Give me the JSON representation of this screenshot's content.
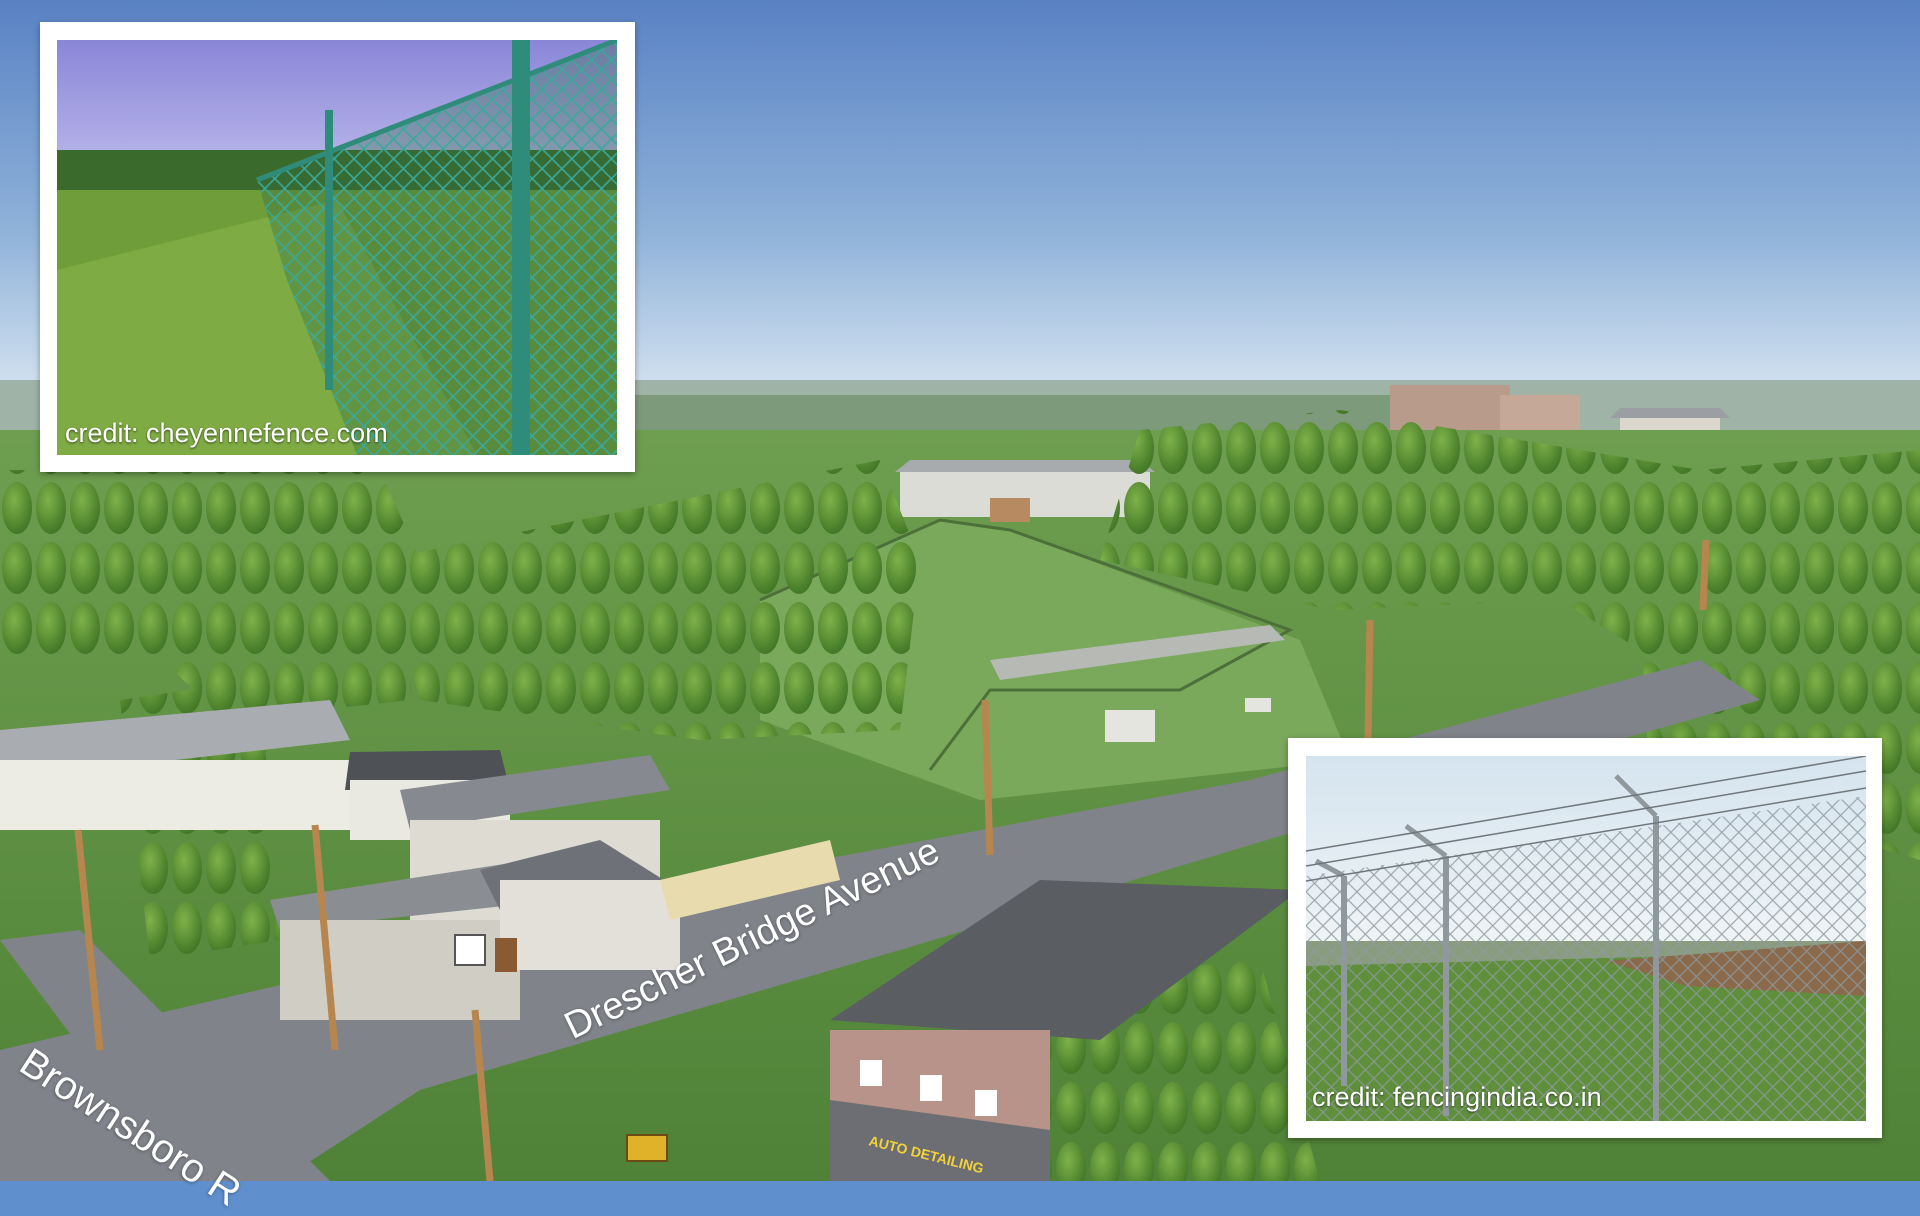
{
  "scene": {
    "description_free": true,
    "street_labels": {
      "drescher": "Drescher Bridge Avenue",
      "brownsboro": "Brownsboro R"
    },
    "sign_text": "AUTO DETAILING"
  },
  "insets": {
    "top_left": {
      "credit": "credit: cheyennefence.com"
    },
    "bottom_right": {
      "credit": "credit: fencingindia.co.in"
    }
  },
  "colors": {
    "sky_top": "#5a86c6",
    "sky_bottom": "#dce9f4",
    "grass": "#5e8f45",
    "road": "#7b7f86",
    "tree": "#4f8a2c",
    "accent_bar": "#3c8c2c"
  }
}
